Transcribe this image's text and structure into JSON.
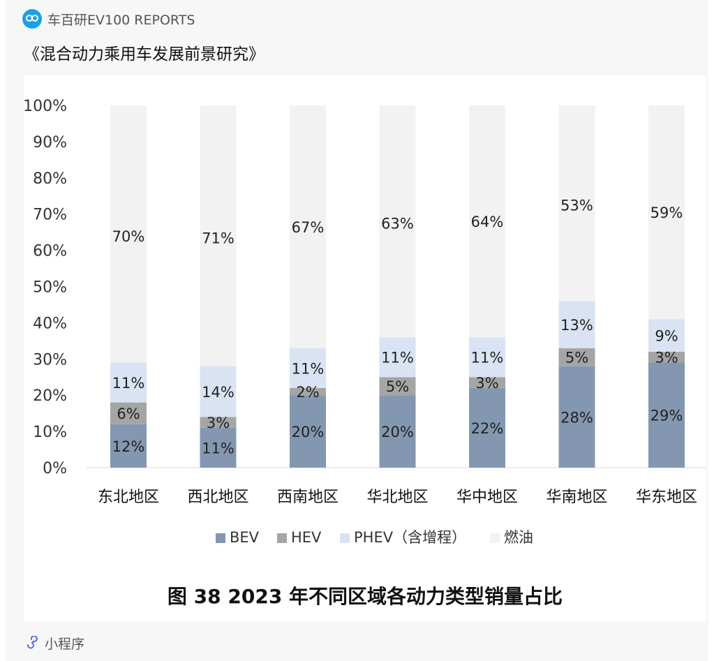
{
  "header": {
    "source": "车百研EV100 REPORTS",
    "logo_text": "车百研"
  },
  "article_title": "《混合动力乘用车发展前景研究》",
  "footer": {
    "label": "小程序",
    "icon": "miniprogram-icon"
  },
  "colors": {
    "BEV": "#8497b0",
    "HEV": "#a5a5a5",
    "PHEV": "#dae3f3",
    "fuel": "#f2f2f2"
  },
  "chart_data": {
    "type": "bar",
    "stacked": true,
    "title": "图 38 2023 年不同区域各动力类型销量占比",
    "categories": [
      "东北地区",
      "西北地区",
      "西南地区",
      "华北地区",
      "华中地区",
      "华南地区",
      "华东地区"
    ],
    "series": [
      {
        "name": "BEV",
        "values": [
          12,
          11,
          20,
          20,
          22,
          28,
          29
        ]
      },
      {
        "name": "HEV",
        "values": [
          6,
          3,
          2,
          5,
          3,
          5,
          3
        ]
      },
      {
        "name": "PHEV（含增程）",
        "values": [
          11,
          14,
          11,
          11,
          11,
          13,
          9
        ]
      },
      {
        "name": "燃油",
        "values": [
          70,
          71,
          67,
          63,
          64,
          53,
          59
        ]
      }
    ],
    "yticks": [
      "0%",
      "10%",
      "20%",
      "30%",
      "40%",
      "50%",
      "60%",
      "70%",
      "80%",
      "90%",
      "100%"
    ],
    "ylim": [
      0,
      100
    ],
    "value_suffix": "%",
    "grid": false,
    "legend_position": "bottom"
  }
}
